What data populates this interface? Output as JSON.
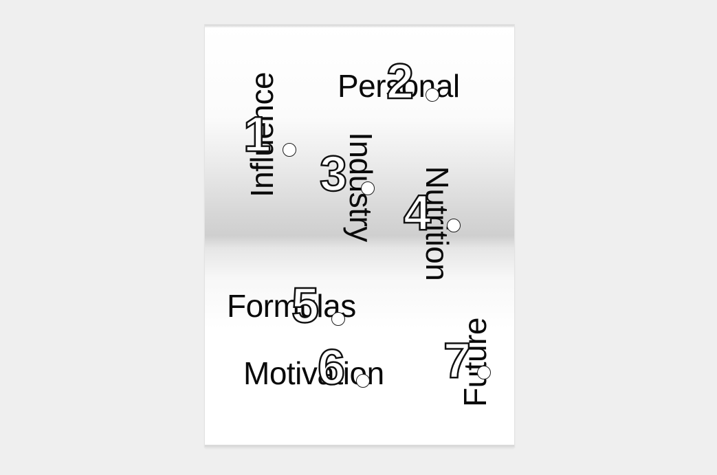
{
  "poster": {
    "items": [
      {
        "word": "Influence",
        "number": "1"
      },
      {
        "word": "Personal",
        "number": "2"
      },
      {
        "word": "Industry",
        "number": "3"
      },
      {
        "word": "Nutrition",
        "number": "4"
      },
      {
        "word": "Formulas",
        "number": "5"
      },
      {
        "word": "Motivation",
        "number": "6"
      },
      {
        "word": "Future",
        "number": "7"
      }
    ]
  },
  "colors": {
    "background": "#efefef",
    "paper": "#ffffff",
    "ink": "#0a0a0a"
  }
}
